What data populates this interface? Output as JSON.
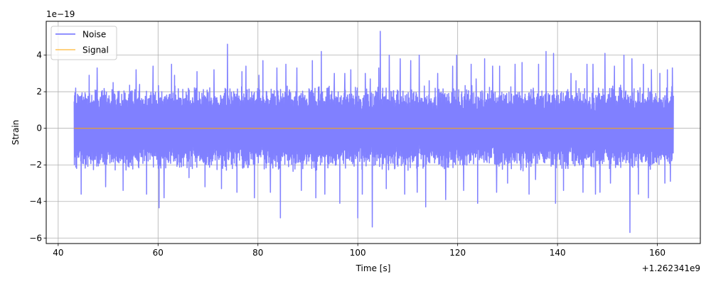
{
  "chart_data": {
    "type": "line",
    "title": "",
    "xlabel": "Time [s]",
    "ylabel": "Strain",
    "x_offset_label": "+1.262341e9",
    "y_scale_label": "1e−19",
    "xlim": [
      37.6,
      168.6
    ],
    "ylim": [
      -6.3,
      5.85
    ],
    "x_ticks": [
      40,
      60,
      80,
      100,
      120,
      140,
      160
    ],
    "x_tick_labels": [
      "40",
      "60",
      "80",
      "100",
      "120",
      "140",
      "160"
    ],
    "y_ticks": [
      -6,
      -4,
      -2,
      0,
      2,
      4
    ],
    "y_tick_labels": [
      "−6",
      "−4",
      "−2",
      "0",
      "2",
      "4"
    ],
    "grid": true,
    "legend_position": "upper-left",
    "colors": {
      "noise": "#8080ff",
      "signal": "#ffa500",
      "grid": "#b0b0b0"
    },
    "series": [
      {
        "name": "Noise",
        "x_range": [
          43.2,
          163.2
        ],
        "typical_amplitude": 2.4,
        "peaks": [
          [
            43.5,
            2.2
          ],
          [
            44.6,
            -3.6
          ],
          [
            46.2,
            2.9
          ],
          [
            47.8,
            3.3
          ],
          [
            49.5,
            -3.2
          ],
          [
            51.0,
            2.5
          ],
          [
            53.0,
            -3.4
          ],
          [
            55.6,
            3.2
          ],
          [
            56.3,
            2.4
          ],
          [
            57.7,
            -3.6
          ],
          [
            59.0,
            3.4
          ],
          [
            60.2,
            -4.35
          ],
          [
            61.2,
            -3.8
          ],
          [
            62.7,
            3.5
          ],
          [
            63.3,
            2.9
          ],
          [
            66.2,
            -2.7
          ],
          [
            67.8,
            3.1
          ],
          [
            69.4,
            -3.2
          ],
          [
            71.2,
            3.2
          ],
          [
            72.7,
            -3.3
          ],
          [
            73.9,
            4.6
          ],
          [
            75.8,
            -3.5
          ],
          [
            76.8,
            3.1
          ],
          [
            77.6,
            3.4
          ],
          [
            79.3,
            -3.8
          ],
          [
            80.2,
            2.9
          ],
          [
            81.0,
            3.7
          ],
          [
            82.5,
            -3.5
          ],
          [
            83.8,
            3.3
          ],
          [
            84.5,
            -4.9
          ],
          [
            85.6,
            3.5
          ],
          [
            87.8,
            3.3
          ],
          [
            88.7,
            -3.4
          ],
          [
            90.9,
            3.7
          ],
          [
            91.6,
            -3.8
          ],
          [
            92.7,
            4.2
          ],
          [
            93.4,
            -3.6
          ],
          [
            95.3,
            3.0
          ],
          [
            96.4,
            -4.1
          ],
          [
            97.4,
            3.0
          ],
          [
            98.6,
            3.2
          ],
          [
            100.0,
            -4.9
          ],
          [
            100.9,
            -3.6
          ],
          [
            101.5,
            3.0
          ],
          [
            102.5,
            2.7
          ],
          [
            102.9,
            -5.4
          ],
          [
            104.2,
            3.3
          ],
          [
            104.5,
            5.3
          ],
          [
            105.7,
            -3.3
          ],
          [
            106.3,
            4.0
          ],
          [
            108.5,
            3.8
          ],
          [
            109.4,
            -3.6
          ],
          [
            110.6,
            3.7
          ],
          [
            111.9,
            -3.5
          ],
          [
            112.3,
            4.0
          ],
          [
            113.6,
            -4.3
          ],
          [
            114.3,
            2.6
          ],
          [
            116.0,
            3.0
          ],
          [
            117.6,
            -3.9
          ],
          [
            119.0,
            3.4
          ],
          [
            119.8,
            4.0
          ],
          [
            121.2,
            -3.4
          ],
          [
            122.7,
            3.5
          ],
          [
            123.7,
            2.7
          ],
          [
            124.0,
            -4.1
          ],
          [
            125.4,
            3.8
          ],
          [
            127.0,
            3.4
          ],
          [
            127.8,
            -3.5
          ],
          [
            128.4,
            3.4
          ],
          [
            130.0,
            -3.0
          ],
          [
            131.5,
            3.5
          ],
          [
            132.9,
            3.6
          ],
          [
            134.3,
            -3.6
          ],
          [
            135.6,
            -2.8
          ],
          [
            136.2,
            3.5
          ],
          [
            137.7,
            4.2
          ],
          [
            139.2,
            4.1
          ],
          [
            139.6,
            -4.1
          ],
          [
            141.2,
            -3.4
          ],
          [
            142.7,
            3.0
          ],
          [
            143.7,
            2.6
          ],
          [
            145.1,
            -3.5
          ],
          [
            145.9,
            3.5
          ],
          [
            147.1,
            3.5
          ],
          [
            147.6,
            -3.6
          ],
          [
            148.5,
            -3.5
          ],
          [
            149.5,
            4.1
          ],
          [
            150.6,
            -3.0
          ],
          [
            151.4,
            3.4
          ],
          [
            153.3,
            4.0
          ],
          [
            154.5,
            -5.7
          ],
          [
            154.9,
            3.8
          ],
          [
            156.2,
            -3.6
          ],
          [
            157.2,
            3.5
          ],
          [
            158.2,
            -3.8
          ],
          [
            158.8,
            3.2
          ],
          [
            160.5,
            3.0
          ],
          [
            161.5,
            -3.0
          ],
          [
            162.0,
            3.2
          ],
          [
            162.6,
            -2.9
          ],
          [
            163.0,
            3.3
          ]
        ]
      },
      {
        "name": "Signal",
        "x": [
          43.2,
          163.2
        ],
        "y": [
          0,
          0
        ]
      }
    ]
  }
}
